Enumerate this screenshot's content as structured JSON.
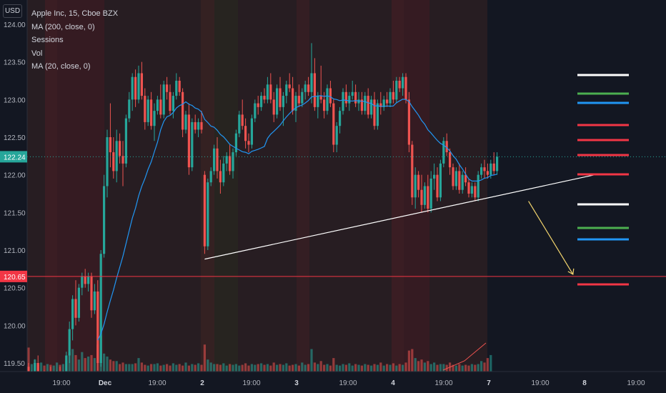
{
  "legend": {
    "symbol": "Apple Inc, 15, Cboe BZX",
    "indicators": [
      "MA (200, close, 0)",
      "Sessions",
      "Vol",
      "MA (20, close, 0)"
    ]
  },
  "currency_label": "USD",
  "colors": {
    "background": "#131722",
    "up": "#26a69a",
    "down": "#ef5350",
    "ma20": "#2196f3",
    "trendline": "#ffffff",
    "arrow": "#f5d76e",
    "last_price": "#26a69a",
    "target_price": "#f23645"
  },
  "chart_data": {
    "type": "candlestick",
    "y_ticks": [
      "124.00",
      "123.50",
      "123.00",
      "122.50",
      "122.00",
      "121.50",
      "121.00",
      "120.50",
      "120.00",
      "119.50"
    ],
    "ylim": [
      119.4,
      124.1
    ],
    "x_ticks": [
      "19:00",
      "Dec",
      "19:00",
      "2",
      "19:00",
      "3",
      "19:00",
      "4",
      "19:00",
      "7",
      "19:00",
      "8",
      "19:00"
    ],
    "last_price": {
      "label": "122.24",
      "value": 122.24
    },
    "target_price": {
      "label": "120.65",
      "value": 120.65
    },
    "trendline": {
      "start": {
        "bar": 56,
        "price": 120.88
      },
      "end": {
        "bar": 180,
        "price": 122.0
      }
    },
    "forecast_arrow": {
      "from": {
        "bar": 159,
        "price": 121.65
      },
      "to": {
        "bar": 172,
        "price": 120.65
      }
    },
    "ohlc": [
      [
        119.45,
        119.5,
        119.25,
        119.3
      ],
      [
        119.3,
        119.4,
        119.2,
        119.35
      ],
      [
        119.35,
        119.55,
        119.3,
        119.5
      ],
      [
        119.5,
        119.6,
        119.2,
        119.25
      ],
      [
        119.25,
        119.35,
        119.1,
        119.3
      ],
      [
        119.3,
        119.4,
        119.15,
        119.2
      ],
      [
        119.2,
        119.35,
        119.1,
        119.3
      ],
      [
        119.3,
        119.45,
        119.2,
        119.25
      ],
      [
        119.25,
        119.35,
        119.15,
        119.3
      ],
      [
        119.3,
        119.4,
        119.2,
        119.35
      ],
      [
        119.35,
        119.45,
        119.2,
        119.25
      ],
      [
        119.25,
        119.4,
        119.1,
        119.35
      ],
      [
        119.35,
        119.65,
        119.3,
        119.6
      ],
      [
        119.6,
        120.05,
        119.5,
        119.95
      ],
      [
        119.95,
        120.4,
        119.8,
        120.35
      ],
      [
        120.35,
        120.6,
        120.0,
        120.1
      ],
      [
        120.1,
        120.55,
        120.05,
        120.5
      ],
      [
        120.5,
        120.7,
        120.4,
        120.65
      ],
      [
        120.65,
        120.75,
        120.5,
        120.55
      ],
      [
        120.55,
        120.7,
        120.45,
        120.65
      ],
      [
        120.65,
        120.7,
        120.1,
        120.2
      ],
      [
        120.2,
        120.55,
        120.15,
        120.45
      ],
      [
        120.45,
        120.6,
        119.4,
        119.5
      ],
      [
        119.5,
        121.0,
        119.45,
        120.95
      ],
      [
        120.95,
        122.0,
        120.9,
        121.85
      ],
      [
        121.85,
        122.6,
        121.7,
        122.5
      ],
      [
        122.5,
        122.95,
        122.1,
        122.3
      ],
      [
        122.3,
        122.5,
        121.95,
        122.05
      ],
      [
        122.05,
        122.6,
        121.9,
        122.45
      ],
      [
        122.45,
        122.55,
        122.15,
        122.25
      ],
      [
        122.25,
        122.45,
        121.85,
        122.15
      ],
      [
        122.15,
        122.8,
        122.1,
        122.75
      ],
      [
        122.75,
        123.1,
        122.7,
        123.0
      ],
      [
        123.0,
        123.35,
        122.85,
        123.3
      ],
      [
        123.3,
        123.4,
        122.9,
        123.0
      ],
      [
        123.0,
        123.45,
        122.95,
        123.35
      ],
      [
        123.35,
        123.5,
        123.0,
        123.05
      ],
      [
        123.05,
        123.15,
        122.6,
        122.7
      ],
      [
        122.7,
        123.05,
        122.65,
        123.0
      ],
      [
        123.0,
        123.1,
        122.6,
        122.65
      ],
      [
        122.65,
        122.95,
        122.45,
        122.85
      ],
      [
        122.85,
        123.05,
        122.8,
        123.0
      ],
      [
        123.0,
        123.2,
        122.75,
        122.8
      ],
      [
        122.8,
        123.25,
        122.75,
        123.2
      ],
      [
        123.2,
        123.3,
        123.0,
        123.1
      ],
      [
        123.1,
        123.2,
        122.8,
        122.85
      ],
      [
        122.85,
        123.1,
        122.75,
        123.05
      ],
      [
        123.05,
        123.35,
        123.0,
        123.25
      ],
      [
        123.25,
        123.3,
        123.05,
        123.1
      ],
      [
        123.1,
        123.15,
        122.5,
        122.6
      ],
      [
        122.6,
        122.85,
        122.55,
        122.8
      ],
      [
        122.8,
        122.95,
        122.0,
        122.1
      ],
      [
        122.1,
        122.75,
        122.05,
        122.7
      ],
      [
        122.7,
        122.8,
        122.55,
        122.6
      ],
      [
        122.6,
        122.75,
        122.5,
        122.7
      ],
      [
        122.7,
        122.85,
        122.55,
        122.6
      ],
      [
        122.0,
        122.05,
        120.95,
        121.05
      ],
      [
        121.05,
        121.95,
        121.0,
        121.9
      ],
      [
        121.9,
        122.1,
        121.85,
        122.05
      ],
      [
        122.05,
        122.4,
        122.0,
        122.35
      ],
      [
        122.35,
        122.5,
        121.95,
        122.05
      ],
      [
        122.05,
        122.2,
        121.75,
        121.9
      ],
      [
        121.9,
        122.25,
        121.85,
        122.15
      ],
      [
        122.15,
        122.3,
        122.05,
        122.25
      ],
      [
        122.25,
        122.4,
        122.0,
        122.05
      ],
      [
        122.05,
        122.35,
        121.95,
        122.3
      ],
      [
        122.3,
        122.6,
        122.25,
        122.55
      ],
      [
        122.55,
        122.85,
        122.5,
        122.8
      ],
      [
        122.8,
        123.0,
        122.6,
        122.65
      ],
      [
        122.65,
        122.75,
        122.35,
        122.45
      ],
      [
        122.45,
        122.55,
        122.3,
        122.4
      ],
      [
        122.4,
        122.8,
        122.35,
        122.75
      ],
      [
        122.75,
        123.0,
        122.7,
        122.95
      ],
      [
        122.95,
        123.05,
        122.8,
        122.9
      ],
      [
        122.9,
        123.1,
        122.85,
        123.05
      ],
      [
        123.05,
        123.15,
        122.95,
        123.0
      ],
      [
        123.0,
        123.3,
        122.95,
        123.2
      ],
      [
        123.2,
        123.35,
        122.95,
        123.0
      ],
      [
        123.0,
        123.1,
        122.7,
        122.8
      ],
      [
        122.8,
        123.2,
        122.75,
        123.15
      ],
      [
        123.15,
        123.3,
        122.85,
        122.9
      ],
      [
        122.9,
        123.1,
        122.65,
        123.05
      ],
      [
        123.05,
        123.25,
        122.95,
        123.2
      ],
      [
        123.2,
        123.35,
        123.1,
        123.15
      ],
      [
        123.15,
        123.3,
        122.8,
        122.85
      ],
      [
        122.85,
        123.1,
        122.7,
        123.05
      ],
      [
        123.05,
        123.2,
        122.9,
        122.95
      ],
      [
        122.95,
        123.15,
        122.9,
        123.1
      ],
      [
        123.1,
        123.25,
        123.0,
        123.2
      ],
      [
        123.2,
        123.3,
        123.05,
        123.1
      ],
      [
        123.1,
        123.75,
        122.95,
        123.35
      ],
      [
        123.35,
        123.55,
        122.85,
        122.9
      ],
      [
        122.9,
        123.1,
        122.75,
        123.05
      ],
      [
        123.05,
        123.45,
        122.95,
        123.0
      ],
      [
        123.0,
        123.1,
        122.75,
        122.85
      ],
      [
        122.85,
        123.2,
        122.8,
        123.15
      ],
      [
        123.15,
        123.25,
        122.9,
        122.95
      ],
      [
        122.95,
        123.0,
        122.3,
        122.4
      ],
      [
        122.4,
        122.7,
        122.3,
        122.65
      ],
      [
        122.65,
        122.9,
        122.55,
        122.85
      ],
      [
        122.85,
        123.15,
        122.8,
        123.1
      ],
      [
        123.1,
        123.2,
        122.9,
        122.95
      ],
      [
        122.95,
        123.1,
        122.85,
        123.05
      ],
      [
        123.05,
        123.25,
        123.0,
        123.1
      ],
      [
        123.1,
        123.2,
        122.9,
        122.95
      ],
      [
        122.95,
        123.1,
        122.85,
        123.0
      ],
      [
        123.0,
        123.1,
        122.8,
        122.85
      ],
      [
        122.85,
        123.1,
        122.8,
        123.05
      ],
      [
        123.05,
        123.15,
        122.75,
        122.8
      ],
      [
        122.8,
        123.05,
        122.75,
        123.0
      ],
      [
        123.0,
        123.1,
        122.6,
        122.65
      ],
      [
        122.65,
        123.0,
        122.6,
        122.95
      ],
      [
        122.95,
        123.1,
        122.8,
        122.9
      ],
      [
        122.9,
        123.05,
        122.85,
        123.0
      ],
      [
        123.0,
        123.1,
        122.9,
        122.95
      ],
      [
        122.95,
        123.15,
        122.9,
        123.1
      ],
      [
        123.1,
        123.25,
        122.95,
        123.0
      ],
      [
        123.0,
        123.3,
        122.95,
        123.25
      ],
      [
        123.25,
        123.3,
        123.1,
        123.15
      ],
      [
        123.15,
        123.35,
        123.05,
        123.3
      ],
      [
        123.3,
        123.35,
        122.95,
        123.0
      ],
      [
        123.0,
        123.1,
        122.3,
        122.4
      ],
      [
        122.4,
        122.45,
        121.6,
        121.7
      ],
      [
        121.7,
        122.1,
        121.55,
        122.0
      ],
      [
        122.0,
        122.05,
        121.7,
        121.8
      ],
      [
        121.8,
        122.0,
        121.5,
        121.6
      ],
      [
        121.6,
        121.9,
        121.55,
        121.85
      ],
      [
        121.85,
        122.0,
        121.5,
        121.55
      ],
      [
        121.55,
        122.05,
        121.5,
        121.95
      ],
      [
        121.95,
        122.15,
        121.8,
        122.0
      ],
      [
        122.0,
        122.1,
        121.65,
        121.7
      ],
      [
        121.7,
        122.2,
        121.65,
        122.15
      ],
      [
        122.15,
        122.5,
        122.1,
        122.45
      ],
      [
        122.45,
        122.55,
        122.25,
        122.3
      ],
      [
        122.3,
        122.35,
        122.0,
        122.1
      ],
      [
        122.1,
        122.15,
        121.8,
        121.85
      ],
      [
        121.85,
        122.1,
        121.8,
        122.05
      ],
      [
        122.05,
        122.15,
        121.75,
        121.8
      ],
      [
        121.8,
        122.05,
        121.75,
        122.0
      ],
      [
        122.0,
        122.1,
        121.85,
        121.9
      ],
      [
        121.9,
        121.95,
        121.7,
        121.75
      ],
      [
        121.75,
        121.9,
        121.7,
        121.85
      ],
      [
        121.85,
        121.9,
        121.65,
        121.7
      ],
      [
        121.7,
        122.05,
        121.65,
        122.0
      ],
      [
        122.0,
        122.15,
        121.95,
        122.1
      ],
      [
        122.1,
        122.2,
        121.95,
        122.05
      ],
      [
        122.05,
        122.15,
        121.95,
        122.0
      ],
      [
        122.0,
        122.2,
        121.95,
        122.15
      ],
      [
        122.15,
        122.3,
        122.0,
        122.05
      ],
      [
        122.05,
        122.3,
        122.0,
        122.24
      ]
    ],
    "volume": [
      32,
      10,
      16,
      9,
      12,
      8,
      10,
      9,
      8,
      12,
      9,
      10,
      14,
      26,
      30,
      22,
      16,
      26,
      18,
      20,
      22,
      18,
      36,
      48,
      24,
      20,
      16,
      14,
      14,
      10,
      12,
      10,
      10,
      10,
      11,
      18,
      12,
      9,
      8,
      10,
      10,
      11,
      8,
      9,
      10,
      8,
      11,
      9,
      10,
      8,
      12,
      8,
      10,
      9,
      11,
      9,
      36,
      16,
      12,
      10,
      10,
      9,
      11,
      8,
      10,
      9,
      10,
      8,
      9,
      11,
      8,
      10,
      9,
      10,
      11,
      9,
      10,
      8,
      12,
      9,
      10,
      9,
      11,
      8,
      9,
      10,
      8,
      12,
      9,
      10,
      30,
      12,
      10,
      14,
      9,
      10,
      8,
      18,
      9,
      8,
      10,
      9,
      11,
      8,
      10,
      9,
      8,
      10,
      9,
      8,
      10,
      9,
      12,
      8,
      10,
      9,
      11,
      8,
      10,
      9,
      12,
      28,
      30,
      18,
      14,
      16,
      12,
      14,
      10,
      12,
      9,
      10,
      10,
      9,
      12,
      9,
      8,
      10,
      8,
      9,
      8,
      10,
      9,
      10,
      14,
      12,
      18,
      22
    ]
  }
}
